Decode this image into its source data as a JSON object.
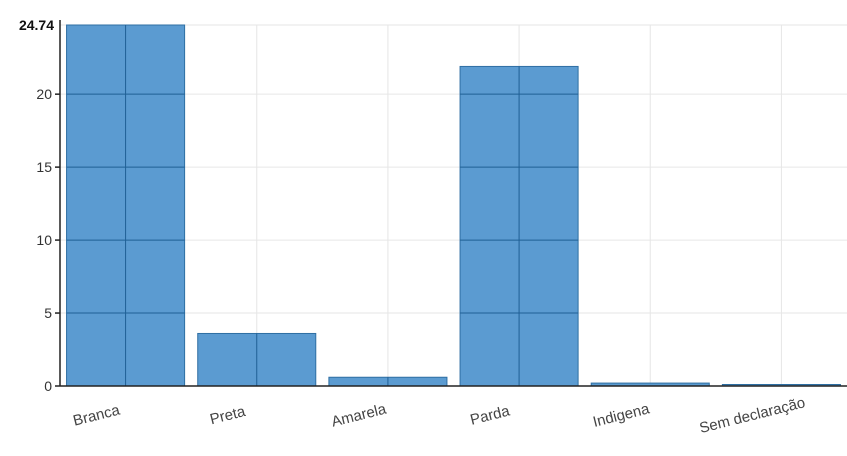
{
  "chart_data": {
    "type": "bar",
    "categories": [
      "Branca",
      "Preta",
      "Amarela",
      "Parda",
      "Indigena",
      "Sem declaração"
    ],
    "values": [
      24.74,
      3.6,
      0.6,
      21.9,
      0.2,
      0.1
    ],
    "ylim": [
      0,
      24.74
    ],
    "yticks": [
      0,
      5,
      10,
      15,
      20
    ],
    "ymax_label": "24.74",
    "bar_color": "#5b9bd1",
    "grid": true,
    "legend": "none"
  }
}
